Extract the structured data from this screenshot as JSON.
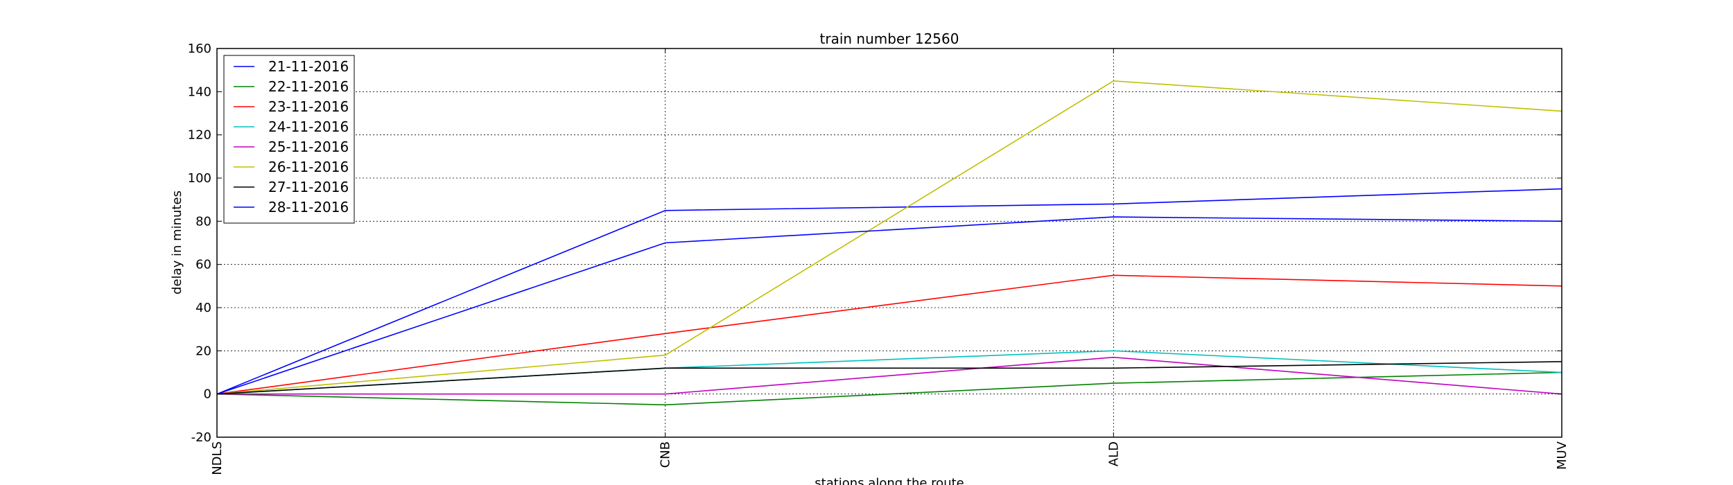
{
  "chart_data": {
    "type": "line",
    "title": "train number 12560",
    "xlabel": "stations along the route",
    "ylabel": "delay in minutes",
    "categories": [
      "NDLS",
      "CNB",
      "ALD",
      "MUV"
    ],
    "ylim": [
      -20,
      160
    ],
    "yticks": [
      -20,
      0,
      20,
      40,
      60,
      80,
      100,
      120,
      140,
      160
    ],
    "grid": true,
    "legend_position": "top-left",
    "series": [
      {
        "name": "21-11-2016",
        "color": "#0000ff",
        "values": [
          0,
          85,
          88,
          95
        ]
      },
      {
        "name": "22-11-2016",
        "color": "#008000",
        "values": [
          0,
          -5,
          5,
          10
        ]
      },
      {
        "name": "23-11-2016",
        "color": "#ff0000",
        "values": [
          0,
          28,
          55,
          50
        ]
      },
      {
        "name": "24-11-2016",
        "color": "#00bfbf",
        "values": [
          0,
          12,
          20,
          10
        ]
      },
      {
        "name": "25-11-2016",
        "color": "#bf00bf",
        "values": [
          0,
          0,
          17,
          0
        ]
      },
      {
        "name": "26-11-2016",
        "color": "#bfbf00",
        "values": [
          0,
          18,
          145,
          131
        ]
      },
      {
        "name": "27-11-2016",
        "color": "#000000",
        "values": [
          0,
          12,
          12,
          15
        ]
      },
      {
        "name": "28-11-2016",
        "color": "#0000ff",
        "values": [
          0,
          70,
          82,
          80
        ]
      }
    ]
  }
}
